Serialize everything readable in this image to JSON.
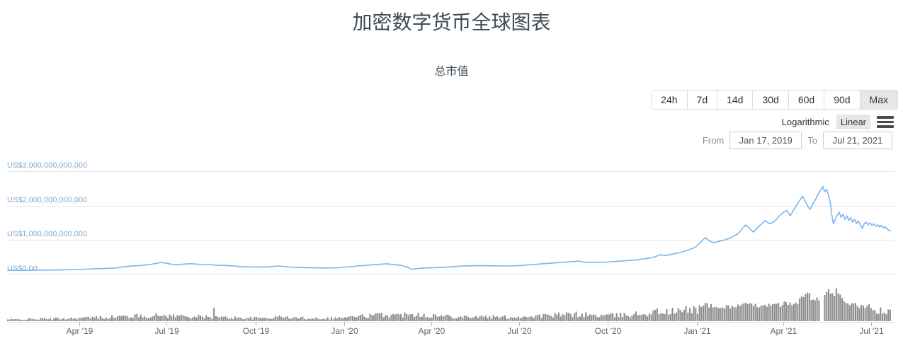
{
  "page": {
    "title": "加密数字货币全球图表",
    "subtitle": "总市值"
  },
  "controls": {
    "range_buttons": [
      {
        "label": "24h",
        "active": false
      },
      {
        "label": "7d",
        "active": false
      },
      {
        "label": "14d",
        "active": false
      },
      {
        "label": "30d",
        "active": false
      },
      {
        "label": "60d",
        "active": false
      },
      {
        "label": "90d",
        "active": false
      },
      {
        "label": "Max",
        "active": true
      }
    ],
    "scale_toggle": [
      {
        "label": "Logarithmic",
        "active": false
      },
      {
        "label": "Linear",
        "active": true
      }
    ],
    "menu_icon": "hamburger-menu-icon",
    "date_range": {
      "from_label": "From",
      "from_value": "Jan 17, 2019",
      "to_label": "To",
      "to_value": "Jul 21, 2021"
    }
  },
  "chart_data": {
    "type": "line",
    "title": "总市值",
    "legend": "none",
    "grid": "horizontal",
    "line_color": "#7cb5ec",
    "volume_color": "#8d8d8d",
    "grid_color": "#e6e6e6",
    "axis_color": "#ccd6eb",
    "y_axis": {
      "labels": [
        "US$3,000,000,000,000",
        "US$2,000,000,000,000",
        "US$1,000,000,000,000",
        "US$0.00"
      ],
      "values_trillions": [
        3,
        2,
        1,
        0
      ],
      "ylim_trillions": [
        0,
        3.2
      ]
    },
    "x_axis": {
      "start_label": "Jan 17, 2019",
      "end_label": "Jul 21, 2021",
      "total_days": 916,
      "ticks": [
        {
          "label": "Apr '19",
          "day": 74
        },
        {
          "label": "Jul '19",
          "day": 165
        },
        {
          "label": "Oct '19",
          "day": 257
        },
        {
          "label": "Jan '20",
          "day": 349
        },
        {
          "label": "Apr '20",
          "day": 440
        },
        {
          "label": "Jul '20",
          "day": 531
        },
        {
          "label": "Oct '20",
          "day": 623
        },
        {
          "label": "Jan '21",
          "day": 715
        },
        {
          "label": "Apr '21",
          "day": 805
        },
        {
          "label": "Jul '21",
          "day": 896
        }
      ]
    },
    "series": [
      {
        "name": "total-market-cap",
        "type": "line",
        "units": "USD trillions",
        "points_day_value": [
          [
            0,
            0.122
          ],
          [
            10,
            0.118
          ],
          [
            20,
            0.12
          ],
          [
            30,
            0.124
          ],
          [
            45,
            0.128
          ],
          [
            60,
            0.133
          ],
          [
            74,
            0.143
          ],
          [
            85,
            0.158
          ],
          [
            95,
            0.168
          ],
          [
            105,
            0.178
          ],
          [
            112,
            0.185
          ],
          [
            118,
            0.215
          ],
          [
            126,
            0.24
          ],
          [
            134,
            0.252
          ],
          [
            142,
            0.272
          ],
          [
            150,
            0.3
          ],
          [
            156,
            0.33
          ],
          [
            160,
            0.35
          ],
          [
            164,
            0.325
          ],
          [
            170,
            0.295
          ],
          [
            176,
            0.282
          ],
          [
            182,
            0.3
          ],
          [
            190,
            0.312
          ],
          [
            198,
            0.298
          ],
          [
            207,
            0.288
          ],
          [
            215,
            0.272
          ],
          [
            224,
            0.262
          ],
          [
            233,
            0.25
          ],
          [
            242,
            0.228
          ],
          [
            252,
            0.218
          ],
          [
            262,
            0.214
          ],
          [
            271,
            0.222
          ],
          [
            281,
            0.246
          ],
          [
            288,
            0.226
          ],
          [
            297,
            0.206
          ],
          [
            308,
            0.198
          ],
          [
            320,
            0.192
          ],
          [
            333,
            0.186
          ],
          [
            344,
            0.196
          ],
          [
            356,
            0.226
          ],
          [
            368,
            0.256
          ],
          [
            380,
            0.282
          ],
          [
            393,
            0.31
          ],
          [
            400,
            0.29
          ],
          [
            408,
            0.262
          ],
          [
            415,
            0.21
          ],
          [
            419,
            0.148
          ],
          [
            424,
            0.168
          ],
          [
            431,
            0.182
          ],
          [
            440,
            0.192
          ],
          [
            450,
            0.204
          ],
          [
            460,
            0.222
          ],
          [
            470,
            0.242
          ],
          [
            480,
            0.25
          ],
          [
            492,
            0.254
          ],
          [
            505,
            0.25
          ],
          [
            518,
            0.246
          ],
          [
            531,
            0.258
          ],
          [
            543,
            0.282
          ],
          [
            555,
            0.31
          ],
          [
            565,
            0.33
          ],
          [
            575,
            0.352
          ],
          [
            585,
            0.372
          ],
          [
            593,
            0.388
          ],
          [
            600,
            0.344
          ],
          [
            608,
            0.352
          ],
          [
            616,
            0.356
          ],
          [
            623,
            0.36
          ],
          [
            632,
            0.382
          ],
          [
            641,
            0.398
          ],
          [
            650,
            0.414
          ],
          [
            660,
            0.448
          ],
          [
            670,
            0.492
          ],
          [
            677,
            0.572
          ],
          [
            683,
            0.548
          ],
          [
            690,
            0.59
          ],
          [
            698,
            0.638
          ],
          [
            706,
            0.7
          ],
          [
            714,
            0.796
          ],
          [
            720,
            0.95
          ],
          [
            724,
            1.068
          ],
          [
            728,
            0.98
          ],
          [
            733,
            0.922
          ],
          [
            738,
            0.958
          ],
          [
            744,
            1.0
          ],
          [
            750,
            1.06
          ],
          [
            758,
            1.18
          ],
          [
            766,
            1.44
          ],
          [
            770,
            1.33
          ],
          [
            774,
            1.23
          ],
          [
            779,
            1.38
          ],
          [
            786,
            1.56
          ],
          [
            791,
            1.47
          ],
          [
            796,
            1.54
          ],
          [
            801,
            1.7
          ],
          [
            806,
            1.82
          ],
          [
            809,
            1.86
          ],
          [
            812,
            1.7
          ],
          [
            816,
            1.88
          ],
          [
            819,
            2.02
          ],
          [
            822,
            2.15
          ],
          [
            825,
            2.27
          ],
          [
            828,
            2.12
          ],
          [
            831,
            1.95
          ],
          [
            833,
            1.89
          ],
          [
            836,
            2.06
          ],
          [
            839,
            2.2
          ],
          [
            841,
            2.32
          ],
          [
            843,
            2.42
          ],
          [
            845,
            2.5
          ],
          [
            846,
            2.55
          ],
          [
            848,
            2.4
          ],
          [
            850,
            2.47
          ],
          [
            852,
            2.3
          ],
          [
            854,
            2.05
          ],
          [
            855,
            1.8
          ],
          [
            856,
            1.62
          ],
          [
            857,
            1.47
          ],
          [
            859,
            1.6
          ],
          [
            861,
            1.72
          ],
          [
            863,
            1.8
          ],
          [
            865,
            1.66
          ],
          [
            867,
            1.75
          ],
          [
            869,
            1.6
          ],
          [
            871,
            1.7
          ],
          [
            873,
            1.57
          ],
          [
            875,
            1.65
          ],
          [
            877,
            1.52
          ],
          [
            879,
            1.6
          ],
          [
            881,
            1.48
          ],
          [
            883,
            1.55
          ],
          [
            885,
            1.44
          ],
          [
            887,
            1.33
          ],
          [
            889,
            1.47
          ],
          [
            891,
            1.52
          ],
          [
            893,
            1.44
          ],
          [
            895,
            1.5
          ],
          [
            897,
            1.42
          ],
          [
            899,
            1.47
          ],
          [
            901,
            1.4
          ],
          [
            903,
            1.44
          ],
          [
            905,
            1.38
          ],
          [
            907,
            1.42
          ],
          [
            909,
            1.35
          ],
          [
            911,
            1.38
          ],
          [
            913,
            1.31
          ],
          [
            915,
            1.28
          ],
          [
            916,
            1.26
          ]
        ]
      },
      {
        "name": "24h-volume",
        "type": "bar",
        "units": "USD billions (estimated envelope, unlabeled axis)",
        "gap_days": [
          843,
          847
        ],
        "envelope_day_value": [
          [
            0,
            18
          ],
          [
            20,
            22
          ],
          [
            40,
            26
          ],
          [
            60,
            30
          ],
          [
            74,
            34
          ],
          [
            90,
            40
          ],
          [
            110,
            48
          ],
          [
            130,
            56
          ],
          [
            150,
            60
          ],
          [
            160,
            64
          ],
          [
            170,
            60
          ],
          [
            185,
            56
          ],
          [
            200,
            48
          ],
          [
            210,
            44
          ],
          [
            213,
            44
          ],
          [
            214,
            170
          ],
          [
            215,
            44
          ],
          [
            230,
            40
          ],
          [
            245,
            36
          ],
          [
            260,
            34
          ],
          [
            275,
            40
          ],
          [
            280,
            42
          ],
          [
            282,
            85
          ],
          [
            284,
            42
          ],
          [
            295,
            38
          ],
          [
            310,
            35
          ],
          [
            325,
            33
          ],
          [
            340,
            36
          ],
          [
            355,
            46
          ],
          [
            370,
            58
          ],
          [
            385,
            68
          ],
          [
            395,
            74
          ],
          [
            405,
            66
          ],
          [
            416,
            80
          ],
          [
            419,
            130
          ],
          [
            422,
            85
          ],
          [
            435,
            64
          ],
          [
            450,
            58
          ],
          [
            465,
            54
          ],
          [
            480,
            50
          ],
          [
            495,
            47
          ],
          [
            510,
            45
          ],
          [
            525,
            46
          ],
          [
            540,
            52
          ],
          [
            555,
            60
          ],
          [
            570,
            66
          ],
          [
            585,
            74
          ],
          [
            595,
            78
          ],
          [
            605,
            66
          ],
          [
            620,
            62
          ],
          [
            635,
            66
          ],
          [
            650,
            76
          ],
          [
            665,
            92
          ],
          [
            677,
            110
          ],
          [
            685,
            102
          ],
          [
            695,
            110
          ],
          [
            705,
            122
          ],
          [
            715,
            142
          ],
          [
            722,
            195
          ],
          [
            728,
            175
          ],
          [
            735,
            152
          ],
          [
            745,
            160
          ],
          [
            755,
            170
          ],
          [
            766,
            190
          ],
          [
            773,
            172
          ],
          [
            780,
            180
          ],
          [
            786,
            192
          ],
          [
            793,
            172
          ],
          [
            798,
            180
          ],
          [
            803,
            190
          ],
          [
            809,
            200
          ],
          [
            814,
            182
          ],
          [
            820,
            230
          ],
          [
            826,
            280
          ],
          [
            830,
            300
          ],
          [
            834,
            270
          ],
          [
            838,
            230
          ],
          [
            842,
            250
          ],
          [
            848,
            260
          ],
          [
            850,
            300
          ],
          [
            853,
            365
          ],
          [
            856,
            330
          ],
          [
            858,
            300
          ],
          [
            860,
            330
          ],
          [
            862,
            280
          ],
          [
            865,
            255
          ],
          [
            868,
            235
          ],
          [
            872,
            210
          ],
          [
            876,
            195
          ],
          [
            880,
            180
          ],
          [
            884,
            170
          ],
          [
            888,
            160
          ],
          [
            892,
            150
          ],
          [
            896,
            140
          ],
          [
            900,
            125
          ],
          [
            904,
            115
          ],
          [
            908,
            105
          ],
          [
            912,
            98
          ],
          [
            916,
            92
          ]
        ]
      }
    ]
  }
}
